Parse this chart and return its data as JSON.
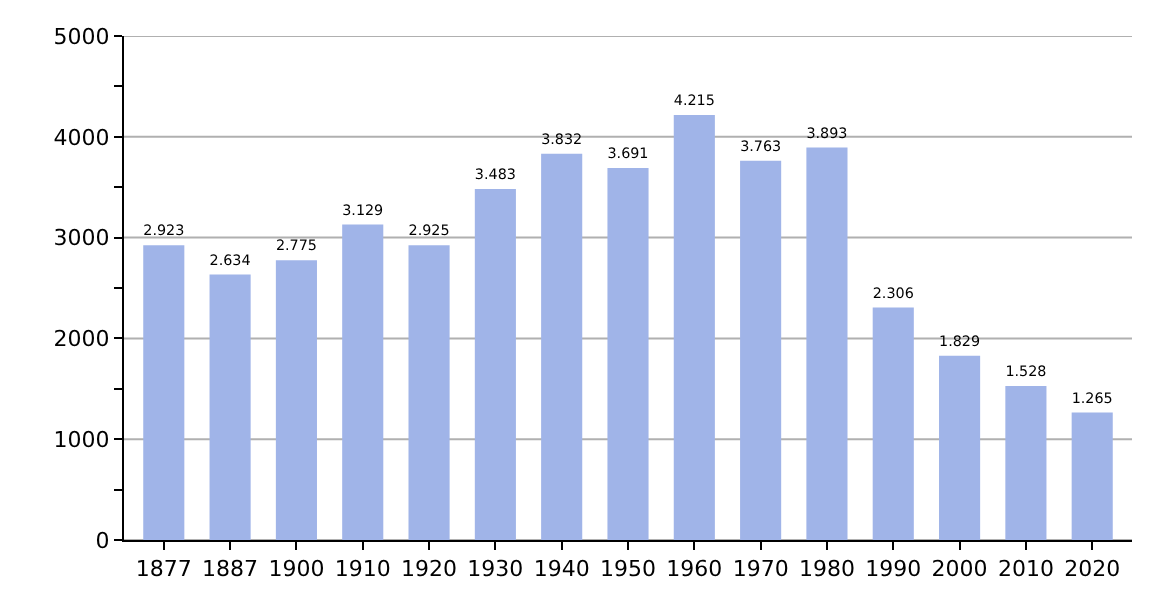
{
  "chart_data": {
    "type": "bar",
    "categories": [
      "1877",
      "1887",
      "1900",
      "1910",
      "1920",
      "1930",
      "1940",
      "1950",
      "1960",
      "1970",
      "1980",
      "1990",
      "2000",
      "2010",
      "2020"
    ],
    "values": [
      2923,
      2634,
      2775,
      3129,
      2925,
      3483,
      3832,
      3691,
      4215,
      3763,
      3893,
      2306,
      1829,
      1528,
      1265
    ],
    "value_labels": [
      "2.923",
      "2.634",
      "2.775",
      "3.129",
      "2.925",
      "3.483",
      "3.832",
      "3.691",
      "4.215",
      "3.763",
      "3.893",
      "2.306",
      "1.829",
      "1.528",
      "1.265"
    ],
    "color": "#a0b4e8",
    "ylim": [
      0,
      5000
    ],
    "yticks": [
      0,
      {
        "value": 500,
        "label": null
      },
      1000,
      {
        "value": 1500,
        "label": null
      },
      2000,
      {
        "value": 2500,
        "label": null
      },
      3000,
      {
        "value": 3500,
        "label": null
      },
      4000,
      {
        "value": 4500,
        "label": null
      },
      5000
    ],
    "grid": "y"
  }
}
